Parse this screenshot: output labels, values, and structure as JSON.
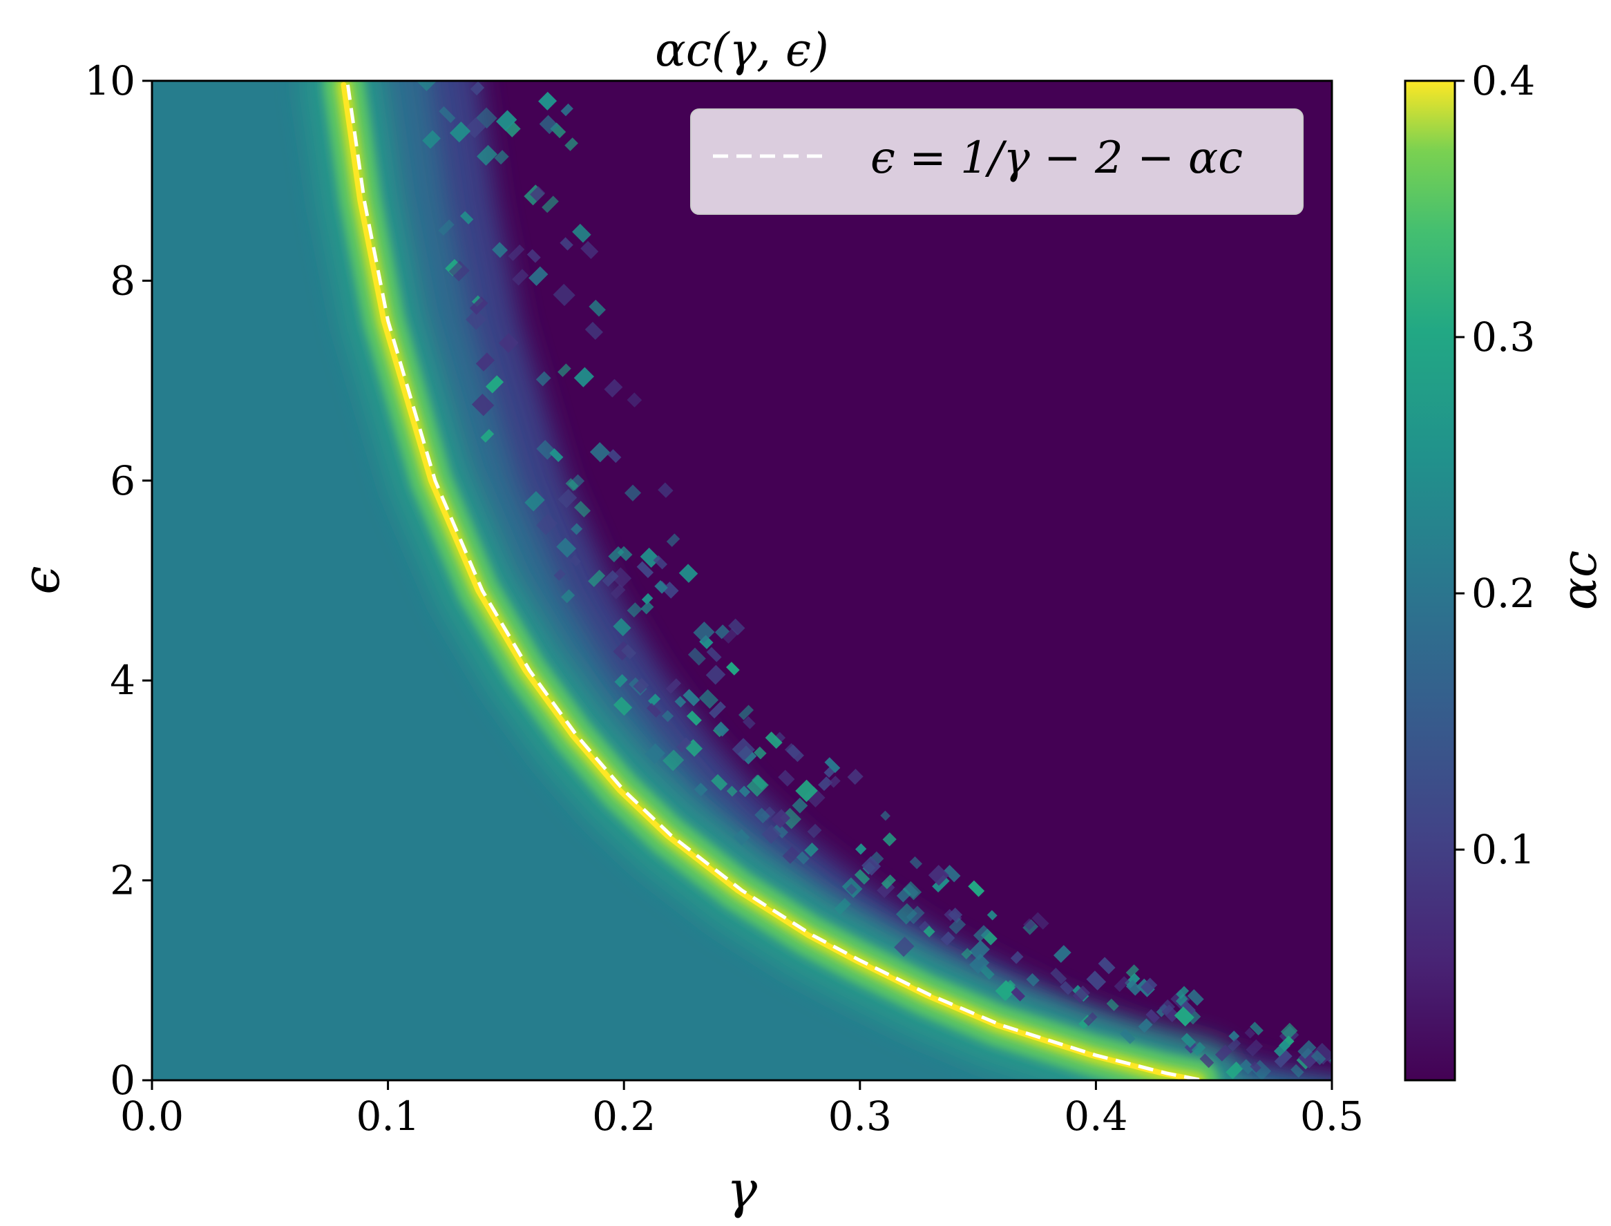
{
  "chart_data": {
    "type": "heatmap",
    "title": "αc(γ, ϵ)",
    "xlabel": "γ",
    "ylabel": "ϵ",
    "xlim": [
      0.0,
      0.5
    ],
    "ylim": [
      0,
      10
    ],
    "x_ticks": [
      "0.0",
      "0.1",
      "0.2",
      "0.3",
      "0.4",
      "0.5"
    ],
    "x_tick_values": [
      0.0,
      0.1,
      0.2,
      0.3,
      0.4,
      0.5
    ],
    "y_ticks": [
      "0",
      "2",
      "4",
      "6",
      "8",
      "10"
    ],
    "y_tick_values": [
      0,
      2,
      4,
      6,
      8,
      10
    ],
    "colormap": "viridis",
    "colorbar": {
      "label": "αc",
      "range": [
        0.01,
        0.4
      ],
      "ticks": [
        "0.1",
        "0.2",
        "0.3",
        "0.4"
      ],
      "tick_values": [
        0.1,
        0.2,
        0.3,
        0.4
      ]
    },
    "legend": {
      "placement": "top-right",
      "entries": [
        {
          "label": "ϵ = 1/γ − 2 − αc",
          "style": "dashed",
          "color": "#ffffff"
        }
      ]
    },
    "series": [
      {
        "name": "ϵ = 1/γ − 2 − αc",
        "style": "dashed",
        "color": "#ffffff",
        "x": [
          0.083,
          0.09,
          0.1,
          0.12,
          0.14,
          0.16,
          0.18,
          0.2,
          0.22,
          0.25,
          0.28,
          0.3,
          0.33,
          0.36,
          0.4,
          0.43,
          0.445
        ],
        "y": [
          9.96,
          8.8,
          7.6,
          6.0,
          4.9,
          4.1,
          3.45,
          2.9,
          2.45,
          1.9,
          1.45,
          1.2,
          0.85,
          0.55,
          0.25,
          0.07,
          0.0
        ]
      }
    ],
    "regions": [
      {
        "description_value": "left region (below ridge)",
        "alpha_c_approx": 0.15
      },
      {
        "description_value": "ridge along dashed curve",
        "alpha_c_approx": 0.4
      },
      {
        "description_value": "upper-right region",
        "alpha_c_approx": 0.01
      }
    ]
  },
  "colors": {
    "viridis_low": "#440154",
    "viridis_mid": "#21918c",
    "viridis_high": "#fde725",
    "axis": "#000000",
    "legend_bg": "#e4d8e6"
  }
}
